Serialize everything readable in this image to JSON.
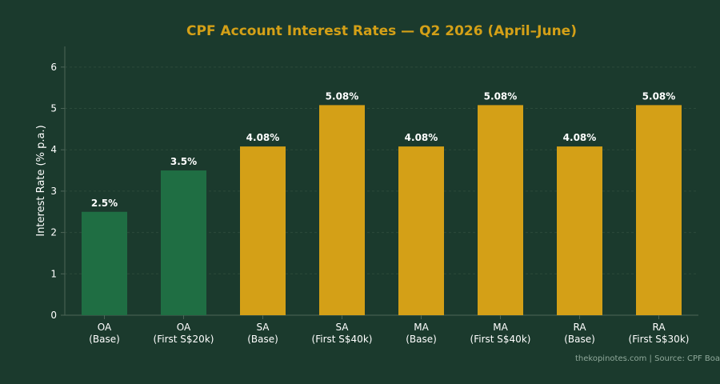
{
  "chart_data": {
    "type": "bar",
    "title": "CPF Account Interest Rates — Q2 2026 (April–June)",
    "xlabel": "",
    "ylabel": "Interest Rate (% p.a.)",
    "ylim": [
      0,
      6.5
    ],
    "yticks": [
      0,
      1,
      2,
      3,
      4,
      5,
      6
    ],
    "grid": true,
    "categories": [
      [
        "OA",
        "(Base)"
      ],
      [
        "OA",
        "(First S$20k)"
      ],
      [
        "SA",
        "(Base)"
      ],
      [
        "SA",
        "(First S$40k)"
      ],
      [
        "MA",
        "(Base)"
      ],
      [
        "MA",
        "(First S$40k)"
      ],
      [
        "RA",
        "(Base)"
      ],
      [
        "RA",
        "(First S$30k)"
      ]
    ],
    "values": [
      2.5,
      3.5,
      4.08,
      5.08,
      4.08,
      5.08,
      4.08,
      5.08
    ],
    "value_labels": [
      "2.5%",
      "3.5%",
      "4.08%",
      "5.08%",
      "4.08%",
      "5.08%",
      "4.08%",
      "5.08%"
    ],
    "bar_colors": [
      "#1f6e43",
      "#1f6e43",
      "#d4a017",
      "#d4a017",
      "#d4a017",
      "#d4a017",
      "#d4a017",
      "#d4a017"
    ],
    "credit": "thekopinotes.com | Source: CPF Board"
  },
  "colors": {
    "background": "#1b3a2d",
    "title": "#d4a017",
    "axis": "#4d6558",
    "grid": "#2c4a3b",
    "text": "#ffffff",
    "credit": "#8fa89a"
  }
}
